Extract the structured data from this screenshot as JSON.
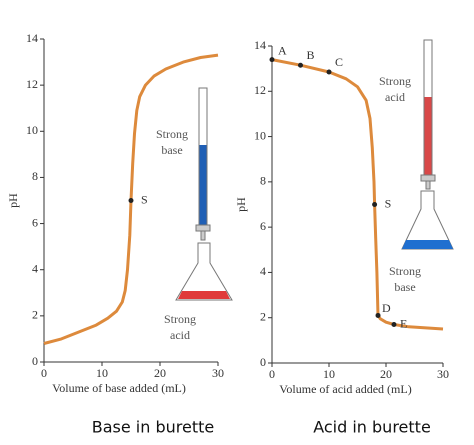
{
  "chart_data": [
    {
      "type": "line",
      "caption": "Base in burette",
      "xlabel": "Volume of base added (mL)",
      "ylabel": "pH",
      "color": "#dd8a3c",
      "x": [
        0,
        3,
        6,
        9,
        11,
        12.5,
        13.5,
        14,
        14.4,
        14.8,
        15,
        15.3,
        15.6,
        16,
        16.5,
        17.5,
        19,
        21,
        24,
        27,
        30
      ],
      "values": [
        0.8,
        1.0,
        1.3,
        1.6,
        1.9,
        2.2,
        2.6,
        3.1,
        4.0,
        5.5,
        7.0,
        8.6,
        9.9,
        10.9,
        11.5,
        12.0,
        12.4,
        12.7,
        13.0,
        13.2,
        13.3
      ],
      "xlim": [
        0,
        30
      ],
      "ylim": [
        0,
        14
      ],
      "xticks": [
        0,
        10,
        20,
        30
      ],
      "yticks": [
        0,
        2,
        4,
        6,
        8,
        10,
        12,
        14
      ],
      "points": [
        {
          "label": "S",
          "x": 15,
          "y": 7
        }
      ],
      "illustration_labels": [
        [
          "Strong",
          "base"
        ],
        [
          "Strong",
          "acid"
        ]
      ]
    },
    {
      "type": "line",
      "caption": "Acid in burette",
      "xlabel": "Volume of acid added (mL)",
      "ylabel": "pH",
      "color": "#dd8a3c",
      "x": [
        0,
        5,
        10,
        13,
        15,
        16.5,
        17.2,
        17.6,
        17.9,
        18,
        18.2,
        18.4,
        18.6,
        19,
        20,
        21.4,
        24,
        27,
        30
      ],
      "values": [
        13.4,
        13.15,
        12.85,
        12.55,
        12.2,
        11.6,
        10.8,
        9.5,
        8.0,
        7.0,
        5.5,
        4.0,
        2.1,
        1.95,
        1.8,
        1.7,
        1.6,
        1.55,
        1.5
      ],
      "xlim": [
        0,
        30
      ],
      "ylim": [
        0,
        14
      ],
      "xticks": [
        0,
        10,
        20,
        30
      ],
      "yticks": [
        0,
        2,
        4,
        6,
        8,
        10,
        12,
        14
      ],
      "points": [
        {
          "label": "A",
          "x": 0,
          "y": 13.4
        },
        {
          "label": "B",
          "x": 5,
          "y": 13.15
        },
        {
          "label": "C",
          "x": 10,
          "y": 12.85
        },
        {
          "label": "S",
          "x": 18,
          "y": 7
        },
        {
          "label": "D",
          "x": 18.6,
          "y": 2.1
        },
        {
          "label": "E",
          "x": 21.4,
          "y": 1.7
        }
      ],
      "illustration_labels": [
        [
          "Strong",
          "acid"
        ],
        [
          "Strong",
          "base"
        ]
      ]
    }
  ]
}
